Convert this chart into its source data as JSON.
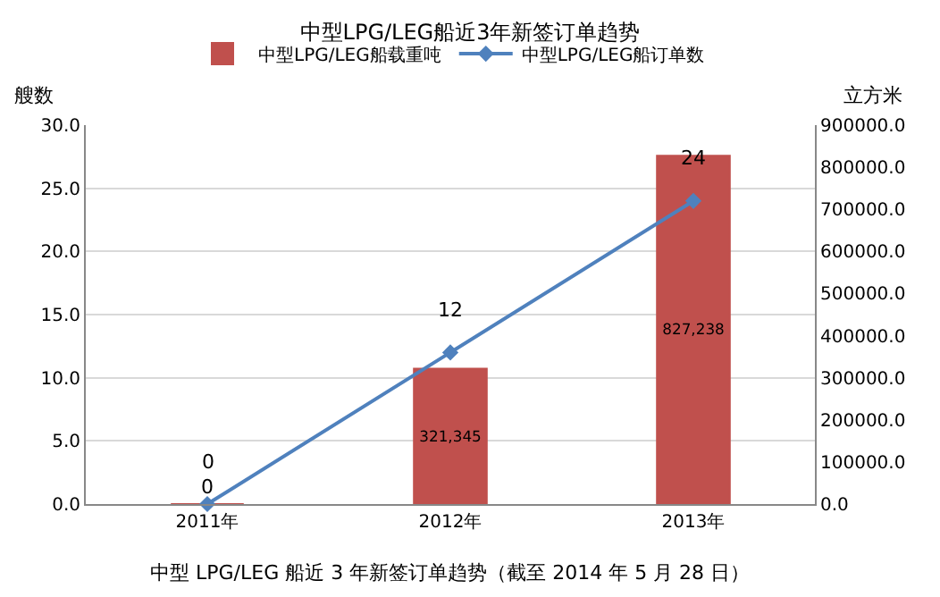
{
  "chart_data": {
    "type": "bar",
    "title": "中型LPG/LEG船近3年新签订单趋势",
    "categories": [
      "2011年",
      "2012年",
      "2013年"
    ],
    "ylabel": "艘数",
    "y2label": "立方米",
    "series": [
      {
        "name": "中型LPG/LEG船载重吨",
        "axis": "y2",
        "color": "#c0504d",
        "values": [
          0,
          321345,
          827238
        ],
        "value_labels": [
          "0",
          "321,345",
          "827,238"
        ]
      },
      {
        "name": "中型LPG/LEG船订单数",
        "type": "line",
        "axis": "y",
        "color": "#4f81bd",
        "marker": "diamond",
        "values": [
          0,
          12,
          24
        ],
        "value_labels": [
          "0",
          "12",
          "24"
        ]
      }
    ],
    "ylim": [
      0,
      30
    ],
    "yticks": [
      {
        "value": 0,
        "label": "0.0"
      },
      {
        "value": 5,
        "label": "5.0"
      },
      {
        "value": 10,
        "label": "10.0"
      },
      {
        "value": 15,
        "label": "15.0"
      },
      {
        "value": 20,
        "label": "20.0"
      },
      {
        "value": 25,
        "label": "25.0"
      },
      {
        "value": 30,
        "label": "30.0"
      }
    ],
    "y2lim": [
      0,
      900000
    ],
    "y2ticks": [
      {
        "value": 0,
        "label": "0.0"
      },
      {
        "value": 100000,
        "label": "100000.0"
      },
      {
        "value": 200000,
        "label": "200000.0"
      },
      {
        "value": 300000,
        "label": "300000.0"
      },
      {
        "value": 400000,
        "label": "400000.0"
      },
      {
        "value": 500000,
        "label": "500000.0"
      },
      {
        "value": 600000,
        "label": "600000.0"
      },
      {
        "value": 700000,
        "label": "700000.0"
      },
      {
        "value": 800000,
        "label": "800000.0"
      },
      {
        "value": 900000,
        "label": "900000.0"
      }
    ],
    "grid": "y",
    "legend": "top",
    "annotations": [
      "中型 LPG/LEG 船近 3 年新签订单趋势（截至 2014 年 5 月 28 日）"
    ]
  }
}
